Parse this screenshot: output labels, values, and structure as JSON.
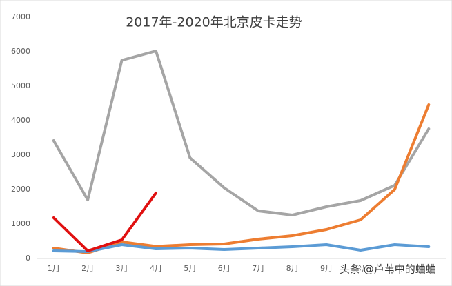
{
  "chart_data": {
    "type": "line",
    "title": "2017年-2020年北京皮卡走势",
    "annotation": "头条 @芦苇中的蛐蛐",
    "categories": [
      "1月",
      "2月",
      "3月",
      "4月",
      "5月",
      "6月",
      "7月",
      "8月",
      "9月",
      "10月",
      "11月",
      "12月"
    ],
    "series": [
      {
        "color": "#a5a5a5",
        "values": [
          3420,
          1700,
          5750,
          6020,
          2920,
          2050,
          1380,
          1260,
          1500,
          1680,
          2120,
          3760
        ]
      },
      {
        "color": "#ed7d31",
        "values": [
          300,
          160,
          480,
          350,
          400,
          420,
          560,
          660,
          840,
          1120,
          2000,
          4460
        ]
      },
      {
        "color": "#5b9bd5",
        "values": [
          220,
          200,
          400,
          280,
          300,
          260,
          300,
          340,
          400,
          240,
          400,
          340
        ]
      },
      {
        "color": "#e01010",
        "values": [
          1180,
          220,
          540,
          1900,
          null,
          null,
          null,
          null,
          null,
          null,
          null,
          null
        ]
      }
    ],
    "ylim": [
      0,
      7000
    ],
    "yticks": [
      0,
      1000,
      2000,
      3000,
      4000,
      5000,
      6000,
      7000
    ],
    "grid": false
  }
}
